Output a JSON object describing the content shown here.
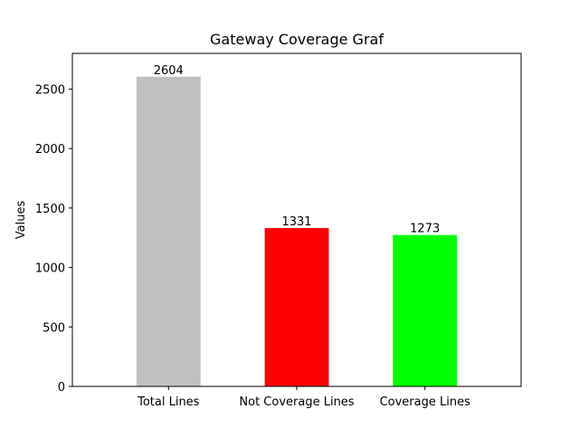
{
  "chart_data": {
    "type": "bar",
    "title": "Gateway Coverage Graf",
    "xlabel": "",
    "ylabel": "Values",
    "categories": [
      "Total Lines",
      "Not Coverage Lines",
      "Coverage Lines"
    ],
    "values": [
      2604,
      1331,
      1273
    ],
    "data_labels": [
      "2604",
      "1331",
      "1273"
    ],
    "colors": [
      "#c0c0c0",
      "#ff0000",
      "#00ff00"
    ],
    "ylim": [
      0,
      2800
    ],
    "yticks": [
      0,
      500,
      1000,
      1500,
      2000,
      2500
    ],
    "ytick_labels": [
      "0",
      "500",
      "1000",
      "1500",
      "2000",
      "2500"
    ],
    "grid": false,
    "legend": "none"
  }
}
